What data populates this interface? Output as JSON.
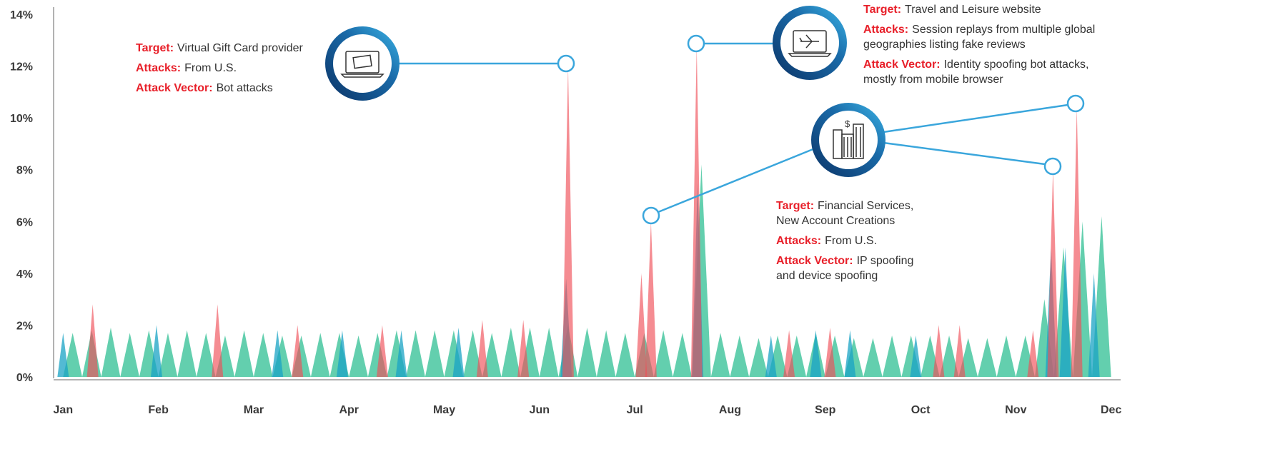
{
  "chart_data": {
    "type": "spikes",
    "xlim": [
      -0.1,
      11.1
    ],
    "xticks": [
      {
        "value": 0,
        "label": "Jan"
      },
      {
        "value": 1,
        "label": "Feb"
      },
      {
        "value": 2,
        "label": "Mar"
      },
      {
        "value": 3,
        "label": "Apr"
      },
      {
        "value": 4,
        "label": "May"
      },
      {
        "value": 5,
        "label": "Jun"
      },
      {
        "value": 6,
        "label": "Jul"
      },
      {
        "value": 7,
        "label": "Aug"
      },
      {
        "value": 8,
        "label": "Sep"
      },
      {
        "value": 9,
        "label": "Oct"
      },
      {
        "value": 10,
        "label": "Nov"
      },
      {
        "value": 11,
        "label": "Dec"
      }
    ],
    "ylim": [
      0,
      14
    ],
    "yticks": [
      {
        "value": 0,
        "label": "0%"
      },
      {
        "value": 2,
        "label": "2%"
      },
      {
        "value": 4,
        "label": "4%"
      },
      {
        "value": 6,
        "label": "6%"
      },
      {
        "value": 8,
        "label": "8%"
      },
      {
        "value": 10,
        "label": "10%"
      },
      {
        "value": 12,
        "label": "12%"
      },
      {
        "value": 14,
        "label": "14%"
      }
    ],
    "series": [
      {
        "color": "#3cc39a",
        "x": [
          0.1,
          0.3,
          0.5,
          0.7,
          0.9,
          1.1,
          1.3,
          1.5,
          1.7,
          1.9,
          2.1,
          2.3,
          2.5,
          2.7,
          2.9,
          3.1,
          3.3,
          3.5,
          3.7,
          3.9,
          4.1,
          4.3,
          4.5,
          4.7,
          4.9,
          5.1,
          5.3,
          5.5,
          5.7,
          5.9,
          6.1,
          6.3,
          6.5,
          6.7,
          6.9,
          7.1,
          7.3,
          7.5,
          7.7,
          7.9,
          8.1,
          8.3,
          8.5,
          8.7,
          8.9,
          9.1,
          9.3,
          9.5,
          9.7,
          9.9,
          10.1,
          10.3,
          10.5,
          10.7,
          10.9
        ],
        "values": [
          1.7,
          1.8,
          1.9,
          1.7,
          1.8,
          1.7,
          1.8,
          1.7,
          1.6,
          1.8,
          1.7,
          1.6,
          1.6,
          1.7,
          1.7,
          1.6,
          1.7,
          1.8,
          1.8,
          1.8,
          1.8,
          1.8,
          1.7,
          1.9,
          1.9,
          1.9,
          2.0,
          1.9,
          1.8,
          1.7,
          1.7,
          1.8,
          1.7,
          8.2,
          1.7,
          1.6,
          1.5,
          1.6,
          1.6,
          1.7,
          1.6,
          1.5,
          1.5,
          1.6,
          1.6,
          1.6,
          1.6,
          1.5,
          1.5,
          1.6,
          1.6,
          3.0,
          5.0,
          6.0,
          6.2
        ]
      },
      {
        "color": "#1aa3c4",
        "x": [
          0.0,
          0.98,
          2.25,
          2.93,
          3.55,
          4.15,
          5.28,
          6.66,
          7.43,
          7.9,
          8.26,
          8.95,
          10.37,
          10.52,
          10.82
        ],
        "values": [
          1.7,
          2.0,
          1.8,
          1.8,
          1.8,
          1.9,
          3.8,
          7.5,
          1.6,
          1.8,
          1.8,
          1.6,
          5.0,
          5.0,
          4.0
        ]
      },
      {
        "color": "#f04e58",
        "x": [
          0.31,
          1.62,
          2.46,
          3.35,
          4.4,
          4.83,
          5.3,
          6.07,
          6.17,
          6.65,
          7.62,
          8.05,
          9.19,
          9.41,
          10.18,
          10.39,
          10.64
        ],
        "values": [
          2.8,
          2.8,
          2.0,
          2.0,
          2.2,
          2.2,
          12.0,
          4.0,
          6.0,
          12.8,
          1.8,
          1.9,
          2.0,
          2.0,
          1.8,
          8.0,
          10.4
        ]
      }
    ],
    "labels": {
      "target": "Target:",
      "attacks": "Attacks:",
      "attack_vector": "Attack Vector:"
    },
    "annotations": [
      {
        "target": [
          "Virtual Gift Card provider"
        ],
        "attacks": [
          "From U.S."
        ],
        "attack_vector": [
          "Bot attacks"
        ]
      },
      {
        "target": [
          "Travel and Leisure website"
        ],
        "attacks": [
          "Session replays from multiple global",
          "geographies listing fake reviews"
        ],
        "attack_vector": [
          "Identity spoofing bot attacks,",
          "mostly from mobile browser"
        ]
      },
      {
        "target": [
          "Financial Services,",
          "New Account Creations"
        ],
        "attacks": [
          "From U.S."
        ],
        "attack_vector": [
          "IP spoofing",
          "and device spoofing"
        ]
      }
    ]
  }
}
